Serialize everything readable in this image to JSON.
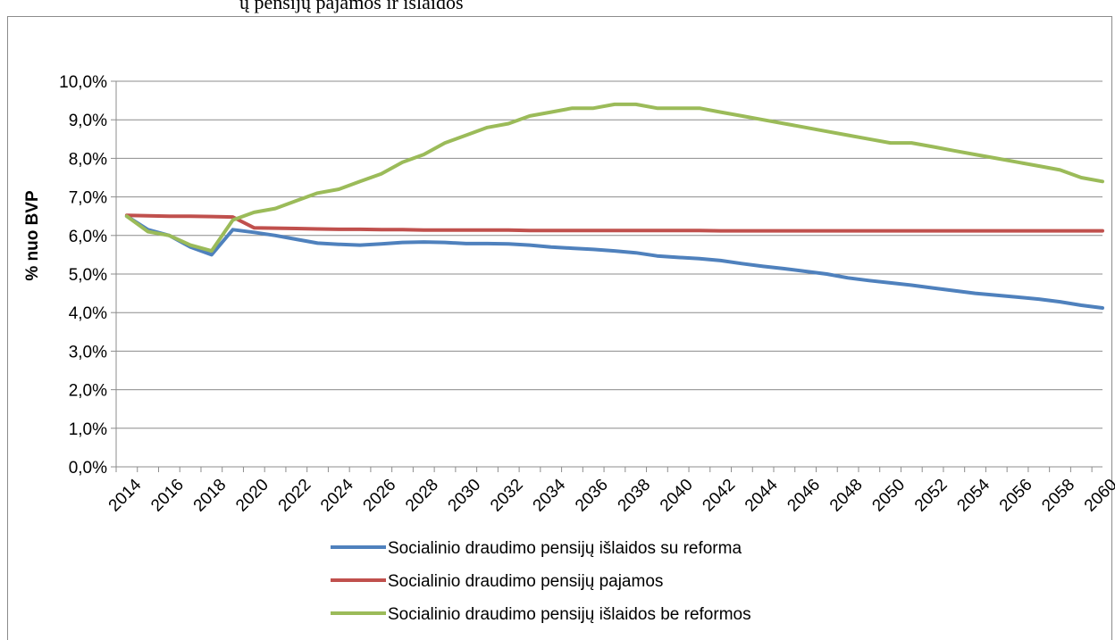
{
  "page": {
    "top_text": "ų pensijų pajamos ir išlaidos"
  },
  "chart_data": {
    "type": "line",
    "title": "",
    "xlabel": "",
    "ylabel": "% nuo BVP",
    "ylim": [
      0,
      10
    ],
    "y_ticks": [
      "0,0%",
      "1,0%",
      "2,0%",
      "3,0%",
      "4,0%",
      "5,0%",
      "6,0%",
      "7,0%",
      "8,0%",
      "9,0%",
      "10,0%"
    ],
    "x": [
      2014,
      2015,
      2016,
      2017,
      2018,
      2019,
      2020,
      2021,
      2022,
      2023,
      2024,
      2025,
      2026,
      2027,
      2028,
      2029,
      2030,
      2031,
      2032,
      2033,
      2034,
      2035,
      2036,
      2037,
      2038,
      2039,
      2040,
      2041,
      2042,
      2043,
      2044,
      2045,
      2046,
      2047,
      2048,
      2049,
      2050,
      2051,
      2052,
      2053,
      2054,
      2055,
      2056,
      2057,
      2058,
      2059,
      2060
    ],
    "x_tick_labels": [
      "2014",
      "2016",
      "2018",
      "2020",
      "2022",
      "2024",
      "2026",
      "2028",
      "2030",
      "2032",
      "2034",
      "2036",
      "2038",
      "2040",
      "2042",
      "2044",
      "2046",
      "2048",
      "2050",
      "2052",
      "2054",
      "2056",
      "2058",
      "2060"
    ],
    "grid": true,
    "legend_position": "bottom",
    "series": [
      {
        "name": "Socialinio draudimo pensijų išlaidos su reforma",
        "color": "#4F81BD",
        "values": [
          6.5,
          6.15,
          6.0,
          5.7,
          5.5,
          6.15,
          6.08,
          6.0,
          5.9,
          5.8,
          5.77,
          5.75,
          5.78,
          5.82,
          5.83,
          5.82,
          5.79,
          5.79,
          5.78,
          5.75,
          5.7,
          5.67,
          5.64,
          5.6,
          5.55,
          5.47,
          5.43,
          5.4,
          5.35,
          5.27,
          5.2,
          5.14,
          5.07,
          5.0,
          4.9,
          4.83,
          4.77,
          4.71,
          4.64,
          4.57,
          4.5,
          4.45,
          4.4,
          4.35,
          4.28,
          4.19,
          4.12
        ]
      },
      {
        "name": "Socialinio draudimo pensijų pajamos",
        "color": "#C0504D",
        "values": [
          6.52,
          6.51,
          6.5,
          6.5,
          6.49,
          6.48,
          6.2,
          6.19,
          6.18,
          6.17,
          6.16,
          6.16,
          6.15,
          6.15,
          6.14,
          6.14,
          6.14,
          6.14,
          6.14,
          6.13,
          6.13,
          6.13,
          6.13,
          6.13,
          6.13,
          6.13,
          6.13,
          6.13,
          6.12,
          6.12,
          6.12,
          6.12,
          6.12,
          6.12,
          6.12,
          6.12,
          6.12,
          6.12,
          6.12,
          6.12,
          6.12,
          6.12,
          6.12,
          6.12,
          6.12,
          6.12,
          6.12
        ]
      },
      {
        "name": "Socialinio draudimo pensijų išlaidos be reformos",
        "color": "#9BBB59",
        "values": [
          6.5,
          6.1,
          6.0,
          5.75,
          5.6,
          6.4,
          6.6,
          6.7,
          6.9,
          7.1,
          7.2,
          7.4,
          7.6,
          7.9,
          8.1,
          8.4,
          8.6,
          8.8,
          8.9,
          9.1,
          9.2,
          9.3,
          9.3,
          9.4,
          9.4,
          9.3,
          9.3,
          9.3,
          9.2,
          9.1,
          9.0,
          8.9,
          8.8,
          8.7,
          8.6,
          8.5,
          8.4,
          8.4,
          8.3,
          8.2,
          8.1,
          8.0,
          7.9,
          7.8,
          7.7,
          7.5,
          7.4
        ]
      }
    ]
  }
}
